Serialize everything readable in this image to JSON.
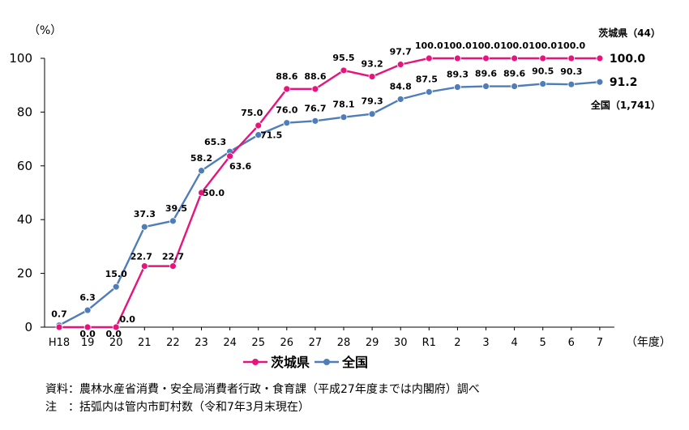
{
  "chart_data": {
    "type": "line",
    "y_unit": "（%）",
    "x_unit": "（年度）",
    "ylim": [
      0,
      100
    ],
    "yticks": [
      "0",
      "20",
      "40",
      "60",
      "80",
      "100"
    ],
    "categories": [
      "H18",
      "19",
      "20",
      "21",
      "22",
      "23",
      "24",
      "25",
      "26",
      "27",
      "28",
      "29",
      "30",
      "R1",
      "2",
      "3",
      "4",
      "5",
      "6",
      "7"
    ],
    "series": [
      {
        "name": "茨城県",
        "color": "#e6147c",
        "marker": "circle",
        "values": [
          0.0,
          0.0,
          0.0,
          22.7,
          22.7,
          50.0,
          63.6,
          75.0,
          88.6,
          88.6,
          95.5,
          93.2,
          97.7,
          100.0,
          100.0,
          100.0,
          100.0,
          100.0,
          100.0,
          100.0
        ],
        "labels": [
          "",
          "0.0",
          "0.0",
          "22.7",
          "22.7",
          "50.0",
          "63.6",
          "75.0",
          "88.6",
          "88.6",
          "95.5",
          "93.2",
          "97.7",
          "100.0",
          "100.0",
          "100.0",
          "100.0",
          "100.0",
          "100.0",
          "100.0"
        ],
        "series_note": "茨城県（44）"
      },
      {
        "name": "全国",
        "color": "#4f7db8",
        "marker": "circle",
        "values": [
          0.7,
          6.3,
          15.0,
          37.3,
          39.5,
          58.2,
          65.3,
          71.5,
          76.0,
          76.7,
          78.1,
          79.3,
          84.8,
          87.5,
          89.3,
          89.6,
          89.6,
          90.5,
          90.3,
          91.2
        ],
        "labels": [
          "0.7",
          "6.3",
          "15.0",
          "37.3",
          "39.5",
          "58.2",
          "65.3",
          "71.5",
          "76.0",
          "76.7",
          "78.1",
          "79.3",
          "84.8",
          "87.5",
          "89.3",
          "89.6",
          "89.6",
          "90.5",
          "90.3",
          "91.2"
        ],
        "series_note": "全国（1,741）"
      }
    ],
    "zero_label_2020": "0.0",
    "legend_position": "bottom-center",
    "grid": false
  },
  "notes": {
    "source": "資料：農林水産省消費・安全局消費者行政・食育課（平成27年度までは内閣府）調べ",
    "remark": "注　：括弧内は管内市町村数（令和7年3月末現在）"
  }
}
